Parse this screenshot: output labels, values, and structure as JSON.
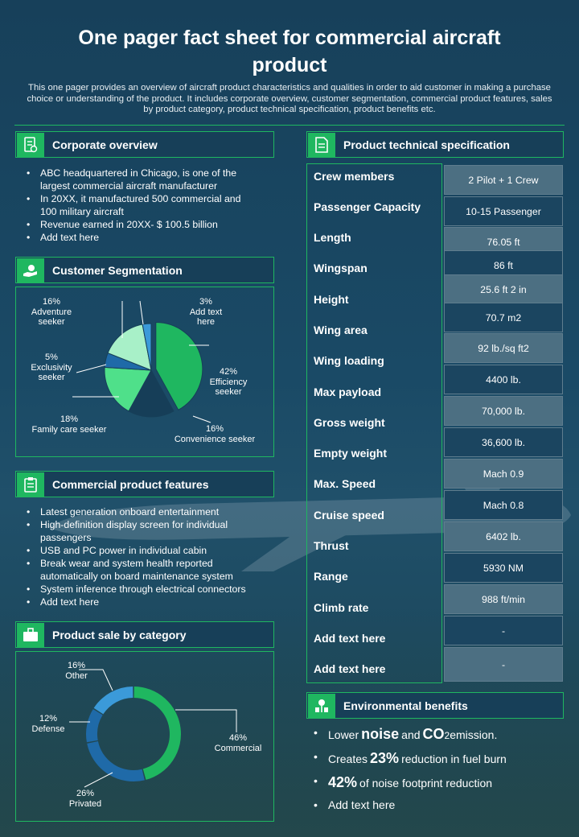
{
  "title": "One pager fact sheet for commercial aircraft product",
  "intro": "This one pager provides an overview of aircraft product characteristics and qualities in order to aid customer in making a purchase choice or understanding of the product. It includes corporate overview, customer segmentation, commercial product features, sales by product category,  product technical specification, product benefits etc.",
  "sections": {
    "corporate": "Corporate overview",
    "segmentation": "Customer Segmentation",
    "features": "Commercial product features",
    "sales": "Product sale by category",
    "specs": "Product technical specification",
    "env": "Environmental benefits"
  },
  "corporate_items": [
    "ABC headquartered  in Chicago, is one of the largest commercial aircraft  manufacturer",
    "In 20XX,  it manufactured 500 commercial and 100 military aircraft",
    "Revenue  earned in 20XX-  $ 100.5 billion",
    "Add text here"
  ],
  "feature_items": [
    "Latest generation onboard entertainment",
    "High-definition  display screen for individual passengers",
    "USB and PC power  in individual  cabin",
    "Break wear  and system health reported automatically on board  maintenance system",
    "System inference  through electrical connectors",
    "Add text here"
  ],
  "specs": [
    {
      "label": "Crew members",
      "value": "2 Pilot + 1 Crew"
    },
    {
      "label": "Passenger Capacity",
      "value": "10-15 Passenger"
    },
    {
      "label": "Length",
      "value": "76.05 ft"
    },
    {
      "label": "Wingspan",
      "value": "86 ft"
    },
    {
      "label": "Height",
      "value": "25.6 ft 2 in"
    },
    {
      "label": "Wing area",
      "value": "70.7 m2"
    },
    {
      "label": "Wing loading",
      "value": "92 lb./sq ft2"
    },
    {
      "label": "Max payload",
      "value": "4400 lb."
    },
    {
      "label": "Gross weight",
      "value": "70,000 lb."
    },
    {
      "label": "Empty weight",
      "value": "36,600 lb."
    },
    {
      "label": "Max. Speed",
      "value": "Mach 0.9"
    },
    {
      "label": "Cruise speed",
      "value": "Mach 0.8"
    },
    {
      "label": "Thrust",
      "value": "6402 lb."
    },
    {
      "label": "Range",
      "value": "5930 NM"
    },
    {
      "label": "Climb rate",
      "value": "988 ft/min"
    },
    {
      "label": "Add text here",
      "value": "-"
    },
    {
      "label": "Add text here",
      "value": "-"
    }
  ],
  "env": {
    "item1": {
      "pre": "Lower ",
      "big1": "noise",
      "mid": " and ",
      "big2": "CO",
      "sub": "2",
      "post": " emission."
    },
    "item2": {
      "pre": "Creates ",
      "big": "23%",
      "post": " reduction in fuel burn"
    },
    "item3": {
      "big": "42%",
      "post": " of noise footprint reduction"
    },
    "item4": "Add text here"
  },
  "colors": {
    "accent_green": "#1fb760",
    "dark_green": "#0f7a45",
    "light_green": "#4fe08a",
    "pale_green": "#a8f0c8",
    "dark_navy": "#163e58",
    "blue": "#3b9ad9",
    "deep_blue": "#1f6aa8"
  },
  "chart_data": [
    {
      "type": "pie",
      "name": "Customer Segmentation",
      "categories": [
        "Efficiency seeker",
        "Convenience seeker",
        "Family care seeker",
        "Exclusivity seeker",
        "Adventure seeker",
        "Add text here"
      ],
      "values": [
        42,
        16,
        18,
        5,
        16,
        3
      ],
      "labels": [
        {
          "pct": "42%",
          "text": "Efficiency seeker"
        },
        {
          "pct": "16%",
          "text": "Convenience seeker"
        },
        {
          "pct": "18%",
          "text": "Family  care seeker"
        },
        {
          "pct": "5%",
          "text": "Exclusivity seeker"
        },
        {
          "pct": "16%",
          "text": "Adventure seeker"
        },
        {
          "pct": "3%",
          "text": "Add text here"
        }
      ]
    },
    {
      "type": "pie",
      "name": "Product sale by category",
      "donut": true,
      "categories": [
        "Commercial",
        "Privated",
        "Defense",
        "Other"
      ],
      "values": [
        46,
        26,
        12,
        16
      ],
      "labels": [
        {
          "pct": "46%",
          "text": "Commercial"
        },
        {
          "pct": "26%",
          "text": "Privated"
        },
        {
          "pct": "12%",
          "text": "Defense"
        },
        {
          "pct": "16%",
          "text": "Other"
        }
      ]
    }
  ]
}
